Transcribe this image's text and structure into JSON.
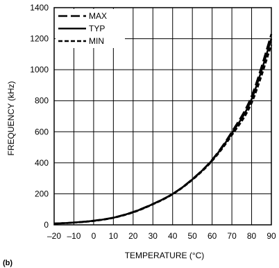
{
  "chart_data": {
    "type": "line",
    "panel_label": "(b)",
    "xlabel": "TEMPERATURE (°C)",
    "ylabel": "FREQUENCY (kHz)",
    "xlim": [
      -20,
      90
    ],
    "ylim": [
      0,
      1400
    ],
    "xticks": [
      -20,
      -10,
      0,
      10,
      20,
      30,
      40,
      50,
      60,
      70,
      80,
      90
    ],
    "xtick_labels": [
      "–20",
      "–10",
      "0",
      "10",
      "20",
      "30",
      "40",
      "50",
      "60",
      "70",
      "80",
      "90"
    ],
    "yticks": [
      0,
      200,
      400,
      600,
      800,
      1000,
      1200,
      1400
    ],
    "ytick_labels": [
      "0",
      "200",
      "400",
      "600",
      "800",
      "1000",
      "1200",
      "1400"
    ],
    "grid": true,
    "legend_position": "top-left",
    "x": [
      -20,
      -10,
      0,
      10,
      20,
      30,
      40,
      50,
      60,
      70,
      80,
      90
    ],
    "series": [
      {
        "name": "MAX",
        "style": "long-dash",
        "values": [
          8,
          15,
          27,
          47,
          83,
          135,
          200,
          295,
          420,
          600,
          830,
          1230
        ]
      },
      {
        "name": "TYP",
        "style": "solid",
        "values": [
          8,
          15,
          26,
          46,
          82,
          134,
          199,
          293,
          417,
          590,
          810,
          1200
        ]
      },
      {
        "name": "MIN",
        "style": "short-dash",
        "values": [
          8,
          14,
          25,
          45,
          80,
          132,
          197,
          290,
          412,
          578,
          785,
          1160
        ]
      }
    ]
  }
}
